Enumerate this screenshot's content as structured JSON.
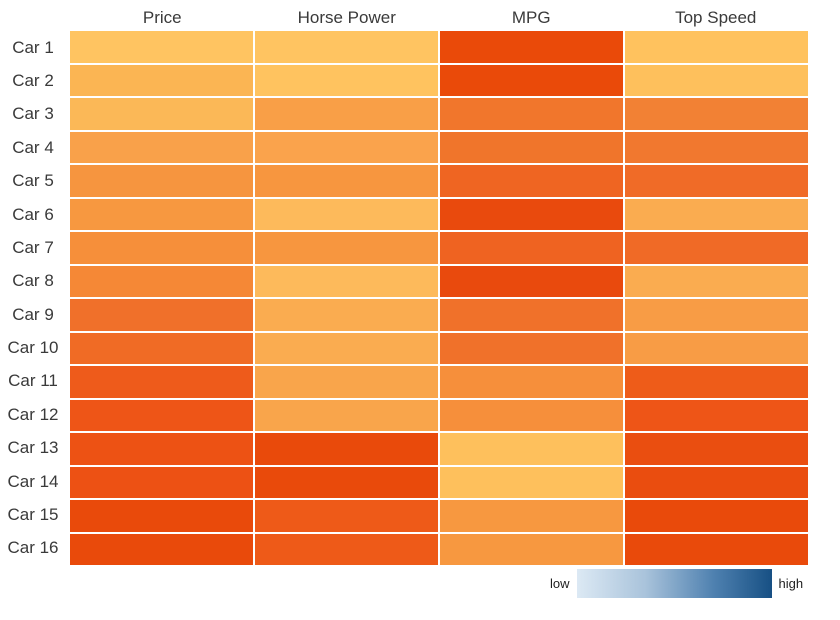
{
  "chart_data": {
    "type": "heatmap",
    "columns": [
      "Price",
      "Horse Power",
      "MPG",
      "Top Speed"
    ],
    "rows": [
      "Car 1",
      "Car 2",
      "Car 3",
      "Car 4",
      "Car 5",
      "Car 6",
      "Car 7",
      "Car 8",
      "Car 9",
      "Car 10",
      "Car 11",
      "Car 12",
      "Car 13",
      "Car 14",
      "Car 15",
      "Car 16"
    ],
    "cell_colors": [
      [
        "#FFC461",
        "#FFC461",
        "#EA4A09",
        "#FFC25E"
      ],
      [
        "#FBB553",
        "#FFC35F",
        "#EA4A09",
        "#FEC05C"
      ],
      [
        "#FBB857",
        "#F99F47",
        "#F1762C",
        "#F28134"
      ],
      [
        "#F9A14A",
        "#FAA34C",
        "#F0752B",
        "#F1782F"
      ],
      [
        "#F6953F",
        "#F7963F",
        "#EF6522",
        "#F06B27"
      ],
      [
        "#F79840",
        "#FDBA5B",
        "#E94A0D",
        "#FAAC50"
      ],
      [
        "#F68F3A",
        "#F7963F",
        "#EF6321",
        "#F06A26"
      ],
      [
        "#F58836",
        "#FDBA5B",
        "#E94A0D",
        "#FAAC50"
      ],
      [
        "#F0702A",
        "#FAAC50",
        "#F0712A",
        "#F89C45"
      ],
      [
        "#F06B25",
        "#FAAC50",
        "#F0712A",
        "#F89C45"
      ],
      [
        "#EE5B1B",
        "#F9A54B",
        "#F68F3B",
        "#EE5C19"
      ],
      [
        "#EE5517",
        "#F9A54B",
        "#F68F3B",
        "#EE5517"
      ],
      [
        "#ED5214",
        "#E94A0B",
        "#FEC05C",
        "#EA4E10"
      ],
      [
        "#ED5114",
        "#E94A0B",
        "#FEC05C",
        "#EA4D0F"
      ],
      [
        "#E94A0B",
        "#EE5A18",
        "#F79840",
        "#E94A0B"
      ],
      [
        "#E94A0B",
        "#EE5A18",
        "#F79840",
        "#E94A0B"
      ]
    ],
    "values_norm": [
      [
        0.05,
        0.05,
        0.9,
        0.07
      ],
      [
        0.12,
        0.06,
        0.9,
        0.07
      ],
      [
        0.12,
        0.27,
        0.55,
        0.5
      ],
      [
        0.26,
        0.26,
        0.55,
        0.54
      ],
      [
        0.35,
        0.35,
        0.66,
        0.62
      ],
      [
        0.35,
        0.1,
        0.9,
        0.2
      ],
      [
        0.4,
        0.35,
        0.66,
        0.62
      ],
      [
        0.44,
        0.1,
        0.9,
        0.2
      ],
      [
        0.58,
        0.2,
        0.58,
        0.29
      ],
      [
        0.62,
        0.2,
        0.58,
        0.29
      ],
      [
        0.74,
        0.24,
        0.4,
        0.74
      ],
      [
        0.78,
        0.24,
        0.4,
        0.78
      ],
      [
        0.8,
        0.9,
        0.07,
        0.86
      ],
      [
        0.8,
        0.9,
        0.07,
        0.86
      ],
      [
        0.9,
        0.74,
        0.35,
        0.9
      ],
      [
        0.9,
        0.74,
        0.35,
        0.9
      ]
    ],
    "legend": {
      "low_label": "low",
      "high_label": "high",
      "gradient_stops": [
        "#DCE9F4",
        "#A9C3DB",
        "#4F81B0",
        "#175084"
      ],
      "position": "bottom-right"
    },
    "title": "",
    "grid_gap_color": "#FFFFFF",
    "label_color": "#3A3A3A"
  }
}
